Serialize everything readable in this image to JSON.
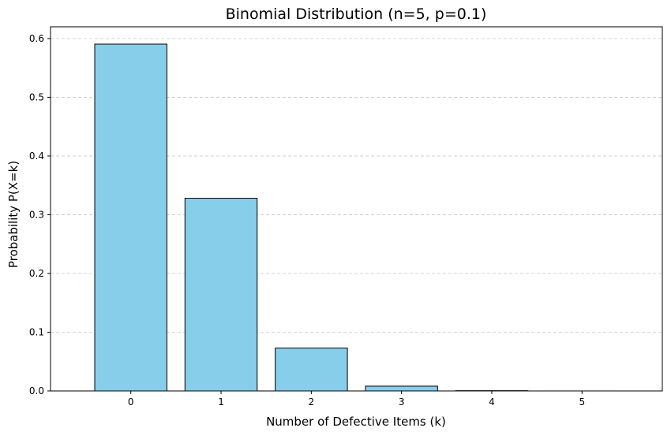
{
  "chart_data": {
    "type": "bar",
    "title": "Binomial Distribution (n=5, p=0.1)",
    "xlabel": "Number of Defective Items (k)",
    "ylabel": "Probability P(X=k)",
    "categories": [
      "0",
      "1",
      "2",
      "3",
      "4",
      "5"
    ],
    "values": [
      0.59049,
      0.32805,
      0.0729,
      0.0081,
      0.00045,
      1e-05
    ],
    "ylim": [
      0,
      0.62
    ],
    "yticks": [
      "0.0",
      "0.1",
      "0.2",
      "0.3",
      "0.4",
      "0.5",
      "0.6"
    ],
    "grid": "y-dashed",
    "legend": "none",
    "colors": {
      "bar_fill": "#87ceeb",
      "bar_edge": "#000000",
      "grid": "#c8c8c8",
      "axis": "#000000"
    }
  }
}
